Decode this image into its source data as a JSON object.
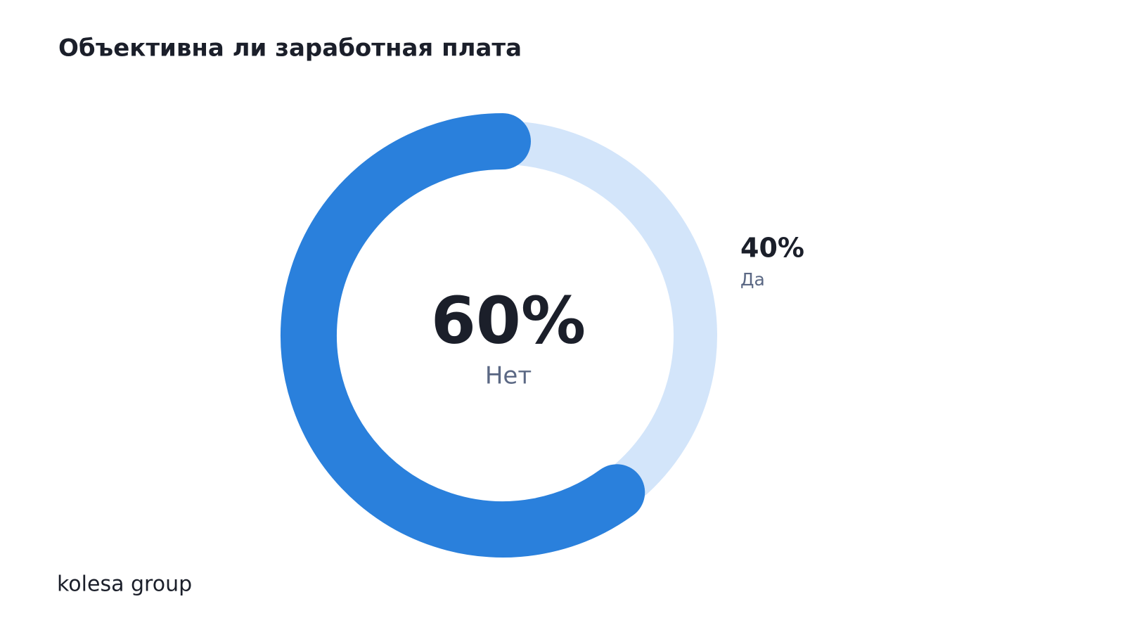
{
  "chart_data": {
    "type": "pie",
    "title": "Объективна ли заработная плата",
    "categories": [
      "Нет",
      "Да"
    ],
    "values": [
      60,
      40
    ],
    "value_labels": [
      "60%",
      "40%"
    ],
    "colors": [
      "#2a80dc",
      "#d3e5fa"
    ]
  },
  "brand": "kolesa group"
}
